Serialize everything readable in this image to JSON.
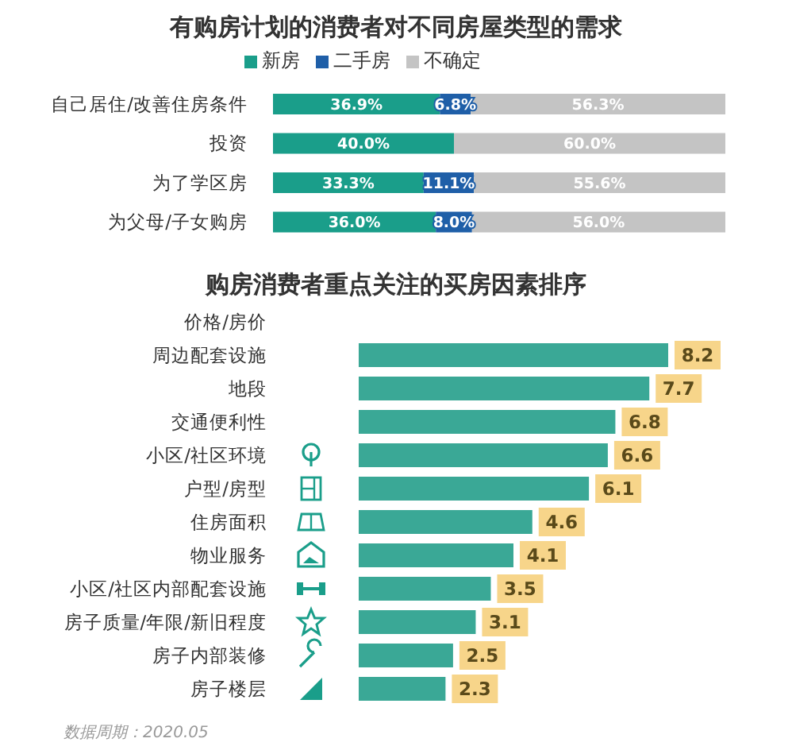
{
  "chart_data": [
    {
      "type": "bar",
      "orientation": "horizontal",
      "stacked": true,
      "title": "有购房计划的消费者对不同房屋类型的需求",
      "legend": "top",
      "categories": [
        "自己居住/改善住房条件",
        "投资",
        "为了学区房",
        "为父母/子女购房"
      ],
      "series": [
        {
          "name": "新房",
          "color": "#1a9e8a",
          "values": [
            36.9,
            40.0,
            33.3,
            36.0
          ],
          "value_labels": [
            "36.9%",
            "40.0%",
            "33.3%",
            "36.0%"
          ]
        },
        {
          "name": "二手房",
          "color": "#1f5fa8",
          "values": [
            6.8,
            null,
            11.1,
            8.0
          ],
          "value_labels": [
            "6.8%",
            null,
            "11.1%",
            "8.0%"
          ]
        },
        {
          "name": "不确定",
          "color": "#c4c4c4",
          "values": [
            56.3,
            60.0,
            55.6,
            56.0
          ],
          "value_labels": [
            "56.3%",
            "60.0%",
            "55.6%",
            "56.0%"
          ]
        }
      ]
    },
    {
      "type": "bar",
      "orientation": "horizontal",
      "title": "购房消费者重点关注的买房因素排序",
      "categories": [
        "价格/房价",
        "周边配套设施",
        "地段",
        "交通便利性",
        "小区/社区环境",
        "户型/房型",
        "住房面积",
        "物业服务",
        "小区/社区内部配套设施",
        "房子质量/年限/新旧程度",
        "房子内部装修",
        "房子楼层"
      ],
      "values": [
        null,
        8.2,
        7.7,
        6.8,
        6.6,
        6.1,
        4.6,
        4.1,
        3.5,
        3.1,
        2.5,
        2.3
      ],
      "color": "#3aa896",
      "data_labels": true,
      "annotations": [
        "数据周期：2020.05"
      ]
    }
  ]
}
